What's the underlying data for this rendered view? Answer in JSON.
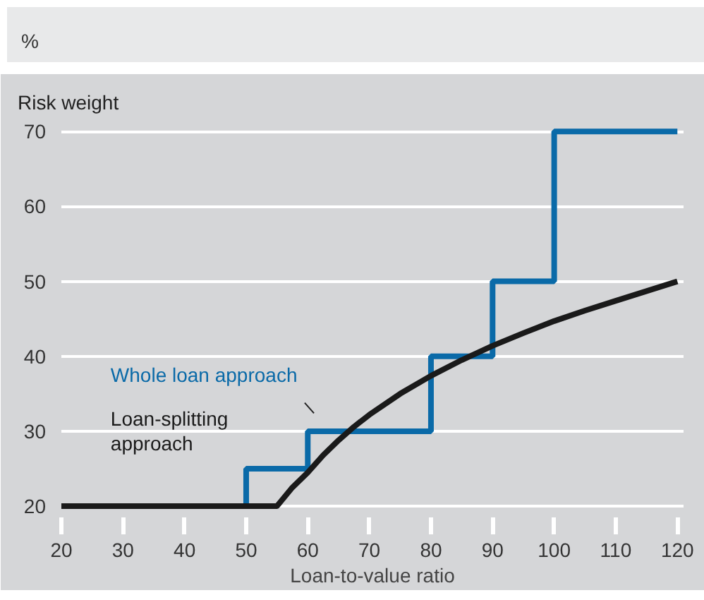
{
  "chart_data": {
    "type": "line",
    "title": "%",
    "ylabel": "Risk weight",
    "xlabel": "Loan-to-value ratio",
    "xlim": [
      20,
      121
    ],
    "xticks": [
      20,
      30,
      40,
      50,
      60,
      70,
      80,
      90,
      100,
      110,
      120
    ],
    "ylim": [
      18.5,
      72
    ],
    "yticks": [
      20,
      30,
      40,
      50,
      60,
      70
    ],
    "grid": "y",
    "legend": false,
    "series": [
      {
        "name": "Whole loan approach",
        "type": "step",
        "color": "#0a6aa8",
        "x": [
          20,
          50,
          60,
          80,
          90,
          100,
          120
        ],
        "values": [
          20,
          25,
          30,
          40,
          50,
          70,
          70
        ]
      },
      {
        "name": "Loan-splitting approach",
        "type": "line",
        "color": "#1a1a1a",
        "x": [
          20,
          55,
          57.5,
          60,
          62.5,
          65,
          67.5,
          70,
          75,
          80,
          85,
          90,
          95,
          100,
          105,
          110,
          115,
          120
        ],
        "values": [
          20,
          20,
          22.5,
          24.5,
          26.8,
          28.8,
          30.6,
          32.2,
          35,
          37.4,
          39.5,
          41.4,
          43.1,
          44.7,
          46.1,
          47.4,
          48.7,
          50
        ]
      }
    ]
  }
}
